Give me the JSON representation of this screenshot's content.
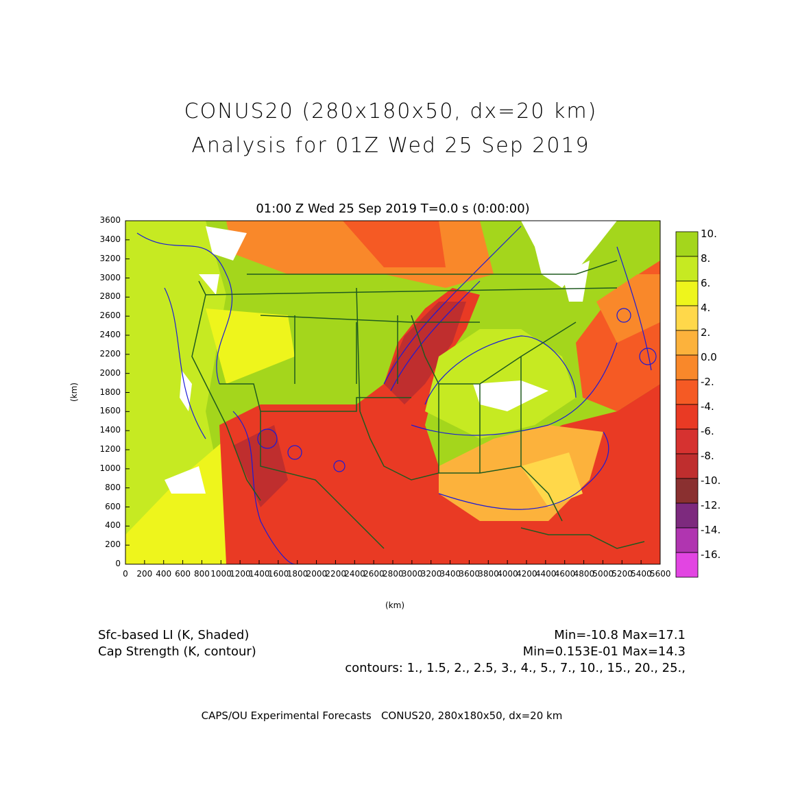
{
  "header": {
    "title_line1": "CONUS20 (280x180x50, dx=20 km)",
    "title_line2": "Analysis for 01Z Wed 25 Sep 2019",
    "subtitle": "01:00 Z Wed 25 Sep 2019    T=0.0 s (0:00:00)"
  },
  "axes": {
    "y_label": "(km)",
    "x_label": "(km)",
    "y_ticks": [
      "0",
      "200",
      "400",
      "600",
      "800",
      "1000",
      "1200",
      "1400",
      "1600",
      "1800",
      "2000",
      "2200",
      "2400",
      "2600",
      "2800",
      "3000",
      "3200",
      "3400",
      "3600"
    ],
    "x_ticks": [
      "0",
      "200",
      "400",
      "600",
      "800",
      "1000",
      "1200",
      "1400",
      "1600",
      "1800",
      "2000",
      "2200",
      "2400",
      "2600",
      "2800",
      "3000",
      "3200",
      "3400",
      "3600",
      "3800",
      "4000",
      "4200",
      "4400",
      "4600",
      "4800",
      "5000",
      "5200",
      "5400",
      "5600"
    ],
    "x_range": [
      0,
      5600
    ],
    "y_range": [
      0,
      3600
    ]
  },
  "colorbar": {
    "labels": [
      "10.",
      "8.",
      "6.",
      "4.",
      "2.",
      "0.0",
      "-2.",
      "-4.",
      "-6.",
      "-8.",
      "-10.",
      "-12.",
      "-14.",
      "-16."
    ],
    "colors": [
      "#a4d61c",
      "#c6ea22",
      "#eef51c",
      "#ffd84a",
      "#fcb23c",
      "#f9882a",
      "#f55a24",
      "#e93a24",
      "#d63230",
      "#bf2e2e",
      "#8a3030",
      "#7d2a7e",
      "#b035b0",
      "#e245e2"
    ]
  },
  "annotations": {
    "field1": "Sfc-based LI (K, Shaded)",
    "field1_range": "Min=-10.8 Max=17.1",
    "field2": "Cap Strength (K, contour)",
    "field2_range": "Min=0.153E-01 Max=14.3",
    "contours": "contours: 1., 1.5, 2., 2.5, 3., 4., 5., 7., 10., 15., 20., 25.,",
    "footer": "CAPS/OU Experimental Forecasts   CONUS20, 280x180x50, dx=20 km"
  },
  "colors": {
    "contour": "#1a1ad8",
    "boundary": "#1f5a1f"
  }
}
